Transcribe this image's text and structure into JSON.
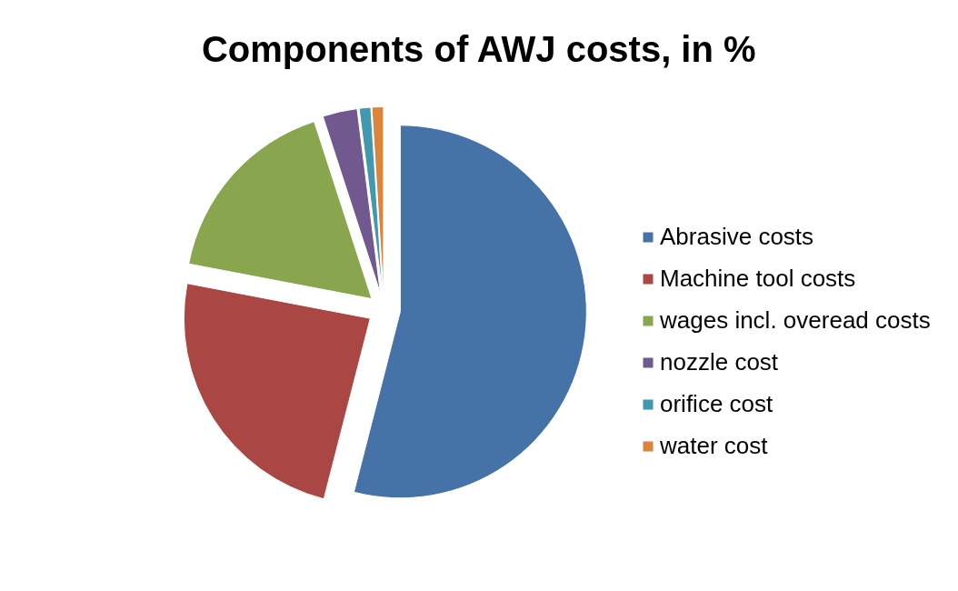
{
  "chart_data": {
    "type": "pie",
    "title": "Components of AWJ costs, in %",
    "categories": [
      "Abrasive costs",
      "Machine tool costs",
      "wages incl. overead costs",
      "nozzle cost",
      "orifice cost",
      "water cost"
    ],
    "values": [
      54,
      24,
      17,
      3,
      1,
      1
    ],
    "colors": [
      "#4572a7",
      "#aa4643",
      "#89a54e",
      "#71588f",
      "#4198af",
      "#db843d"
    ],
    "legend": "right"
  }
}
